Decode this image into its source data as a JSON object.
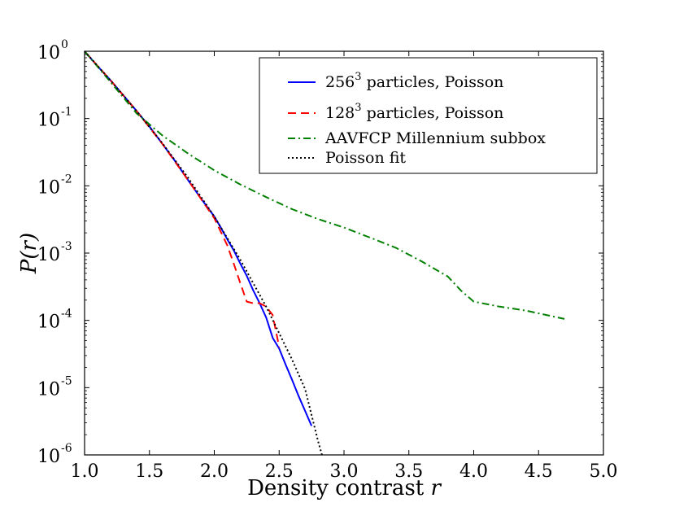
{
  "chart_data": {
    "type": "line",
    "title": "",
    "xlabel": "Density contrast",
    "xlabel_var": "r",
    "ylabel_prefix": "P(",
    "ylabel_var": "r",
    "ylabel_suffix": ")",
    "xlim": [
      1.0,
      5.0
    ],
    "ylim": [
      1e-06,
      1
    ],
    "yscale": "log",
    "x_ticks": [
      "1.0",
      "1.5",
      "2.0",
      "2.5",
      "3.0",
      "3.5",
      "4.0",
      "4.5",
      "5.0"
    ],
    "x_tick_values": [
      1.0,
      1.5,
      2.0,
      2.5,
      3.0,
      3.5,
      4.0,
      4.5,
      5.0
    ],
    "y_ticks": [
      {
        "base": "10",
        "exp": "0",
        "value": 1
      },
      {
        "base": "10",
        "exp": "-1",
        "value": 0.1
      },
      {
        "base": "10",
        "exp": "-2",
        "value": 0.01
      },
      {
        "base": "10",
        "exp": "-3",
        "value": 0.001
      },
      {
        "base": "10",
        "exp": "-4",
        "value": 0.0001
      },
      {
        "base": "10",
        "exp": "-5",
        "value": 1e-05
      },
      {
        "base": "10",
        "exp": "-6",
        "value": 1e-06
      }
    ],
    "legend_position": "top-right",
    "series": [
      {
        "name": "256³ particles, Poisson",
        "label_base": "256",
        "label_sup": "3",
        "label_rest": " particles, Poisson",
        "color": "#0000ff",
        "style": "solid",
        "x": [
          1.0,
          1.1,
          1.2,
          1.3,
          1.4,
          1.5,
          1.6,
          1.7,
          1.8,
          1.9,
          2.0,
          2.05,
          2.1,
          2.15,
          2.2,
          2.25,
          2.3,
          2.35,
          2.4,
          2.45,
          2.5,
          2.55,
          2.6,
          2.65,
          2.7,
          2.75
        ],
        "y": [
          1.0,
          0.6,
          0.37,
          0.22,
          0.13,
          0.076,
          0.042,
          0.023,
          0.012,
          0.0064,
          0.0035,
          0.0024,
          0.0016,
          0.0011,
          0.0007,
          0.00046,
          0.00028,
          0.00018,
          0.00011,
          5.5e-05,
          3.8e-05,
          2.2e-05,
          1.3e-05,
          7.5e-06,
          4.5e-06,
          2.7e-06
        ]
      },
      {
        "name": "128³ particles, Poisson",
        "label_base": "128",
        "label_sup": "3",
        "label_rest": " particles, Poisson",
        "color": "#ff0000",
        "style": "dashed",
        "x": [
          1.0,
          1.2,
          1.4,
          1.6,
          1.8,
          2.0,
          2.1,
          2.15,
          2.2,
          2.25,
          2.3,
          2.35,
          2.4,
          2.45,
          2.5
        ],
        "y": [
          1.0,
          0.37,
          0.13,
          0.042,
          0.012,
          0.0033,
          0.0013,
          0.0007,
          0.00036,
          0.00019,
          0.00018,
          0.00018,
          0.00016,
          0.00012,
          4e-05
        ]
      },
      {
        "name": "AAVFCP Millennium subbox",
        "label_base": "AAVFCP Millennium subbox",
        "label_sup": "",
        "label_rest": "",
        "color": "#008000",
        "style": "dashdot",
        "x": [
          1.0,
          1.2,
          1.4,
          1.6,
          1.8,
          2.0,
          2.2,
          2.4,
          2.6,
          2.8,
          3.0,
          3.2,
          3.4,
          3.6,
          3.8,
          3.9,
          4.0,
          4.2,
          4.4,
          4.7
        ],
        "y": [
          1.0,
          0.35,
          0.12,
          0.056,
          0.03,
          0.017,
          0.0105,
          0.0068,
          0.0045,
          0.0032,
          0.0024,
          0.0017,
          0.0012,
          0.00075,
          0.00045,
          0.00028,
          0.00019,
          0.00016,
          0.00014,
          0.000105
        ]
      },
      {
        "name": "Poisson fit",
        "label_base": "Poisson fit",
        "label_sup": "",
        "label_rest": "",
        "color": "#000000",
        "style": "dotted",
        "x": [
          1.0,
          1.2,
          1.4,
          1.6,
          1.8,
          2.0,
          2.2,
          2.4,
          2.6,
          2.7,
          2.8,
          2.83
        ],
        "y": [
          1.0,
          0.37,
          0.13,
          0.043,
          0.013,
          0.0035,
          0.0008,
          0.00016,
          2.6e-05,
          9.5e-06,
          1.6e-06,
          1e-06
        ]
      }
    ]
  }
}
